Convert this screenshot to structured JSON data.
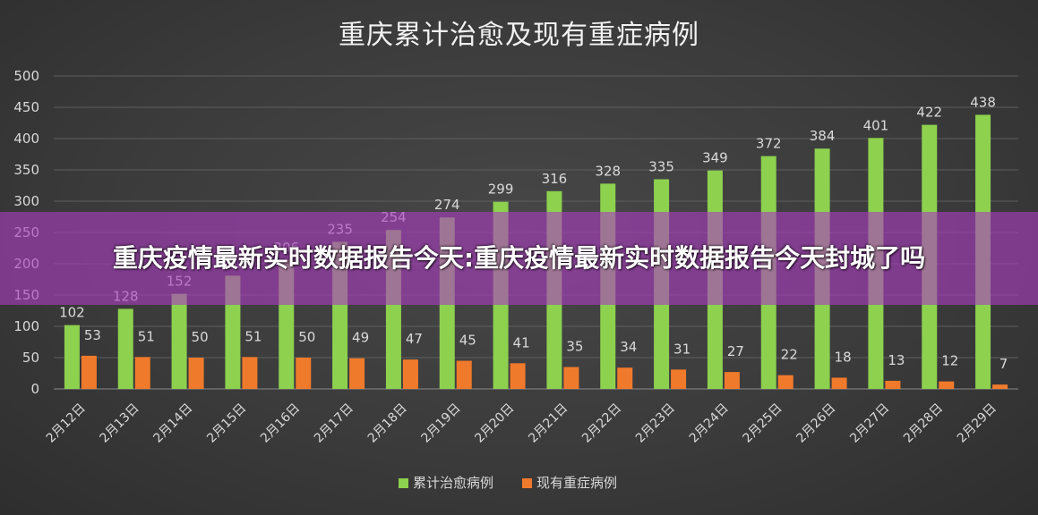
{
  "chart_data": {
    "type": "bar",
    "title": "重庆累计治愈及现有重症病例",
    "categories": [
      "2月12日",
      "2月13日",
      "2月14日",
      "2月15日",
      "2月16日",
      "2月17日",
      "2月18日",
      "2月19日",
      "2月20日",
      "2月21日",
      "2月22日",
      "2月23日",
      "2月24日",
      "2月25日",
      "2月26日",
      "2月27日",
      "2月28日",
      "2月29日"
    ],
    "series": [
      {
        "name": "累计治愈病例",
        "color": "#8dd14f",
        "values": [
          102,
          128,
          152,
          181,
          206,
          235,
          254,
          274,
          299,
          316,
          328,
          335,
          349,
          372,
          384,
          401,
          422,
          438
        ]
      },
      {
        "name": "现有重症病例",
        "color": "#f07a2b",
        "values": [
          53,
          51,
          50,
          51,
          50,
          49,
          47,
          45,
          41,
          35,
          34,
          31,
          27,
          22,
          18,
          13,
          12,
          7
        ]
      }
    ],
    "ylim": [
      0,
      500
    ],
    "yticks": [
      "0",
      "50",
      "100",
      "150",
      "200",
      "250",
      "300",
      "350",
      "400",
      "450",
      "500"
    ],
    "grid": true,
    "legend_position": "bottom"
  },
  "overlay": {
    "headline": "重庆疫情最新实时数据报告今天:重庆疫情最新实时数据报告今天封城了吗"
  }
}
